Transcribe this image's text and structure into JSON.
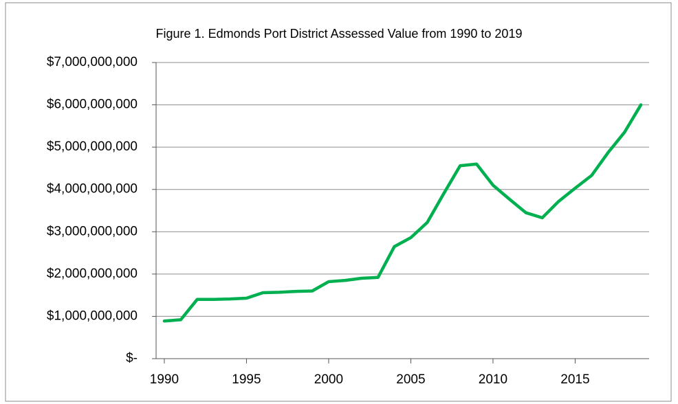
{
  "chart_data": {
    "type": "line",
    "title": "Figure 1.  Edmonds Port District Assessed Value from 1990 to 2019",
    "x": [
      1990,
      1991,
      1992,
      1993,
      1994,
      1995,
      1996,
      1997,
      1998,
      1999,
      2000,
      2001,
      2002,
      2003,
      2004,
      2005,
      2006,
      2007,
      2008,
      2009,
      2010,
      2011,
      2012,
      2013,
      2014,
      2015,
      2016,
      2017,
      2018,
      2019
    ],
    "series": [
      {
        "name": "Assessed Value",
        "color": "#00b050",
        "values": [
          890000000,
          920000000,
          1400000000,
          1400000000,
          1410000000,
          1430000000,
          1560000000,
          1570000000,
          1590000000,
          1600000000,
          1820000000,
          1850000000,
          1900000000,
          1920000000,
          2650000000,
          2860000000,
          3220000000,
          3900000000,
          4560000000,
          4600000000,
          4100000000,
          3770000000,
          3450000000,
          3330000000,
          3720000000,
          4030000000,
          4330000000,
          4870000000,
          5350000000,
          6000000000
        ]
      }
    ],
    "xlim": [
      1989.5,
      2019.5
    ],
    "xticks": [
      1990,
      1995,
      2000,
      2005,
      2010,
      2015
    ],
    "ylim": [
      0,
      7000000000
    ],
    "yticks": [
      {
        "value": 0,
        "label": "$-"
      },
      {
        "value": 1000000000,
        "label": "$1,000,000,000"
      },
      {
        "value": 2000000000,
        "label": "$2,000,000,000"
      },
      {
        "value": 3000000000,
        "label": "$3,000,000,000"
      },
      {
        "value": 4000000000,
        "label": "$4,000,000,000"
      },
      {
        "value": 5000000000,
        "label": "$5,000,000,000"
      },
      {
        "value": 6000000000,
        "label": "$6,000,000,000"
      },
      {
        "value": 7000000000,
        "label": "$7,000,000,000"
      }
    ],
    "grid": true
  }
}
